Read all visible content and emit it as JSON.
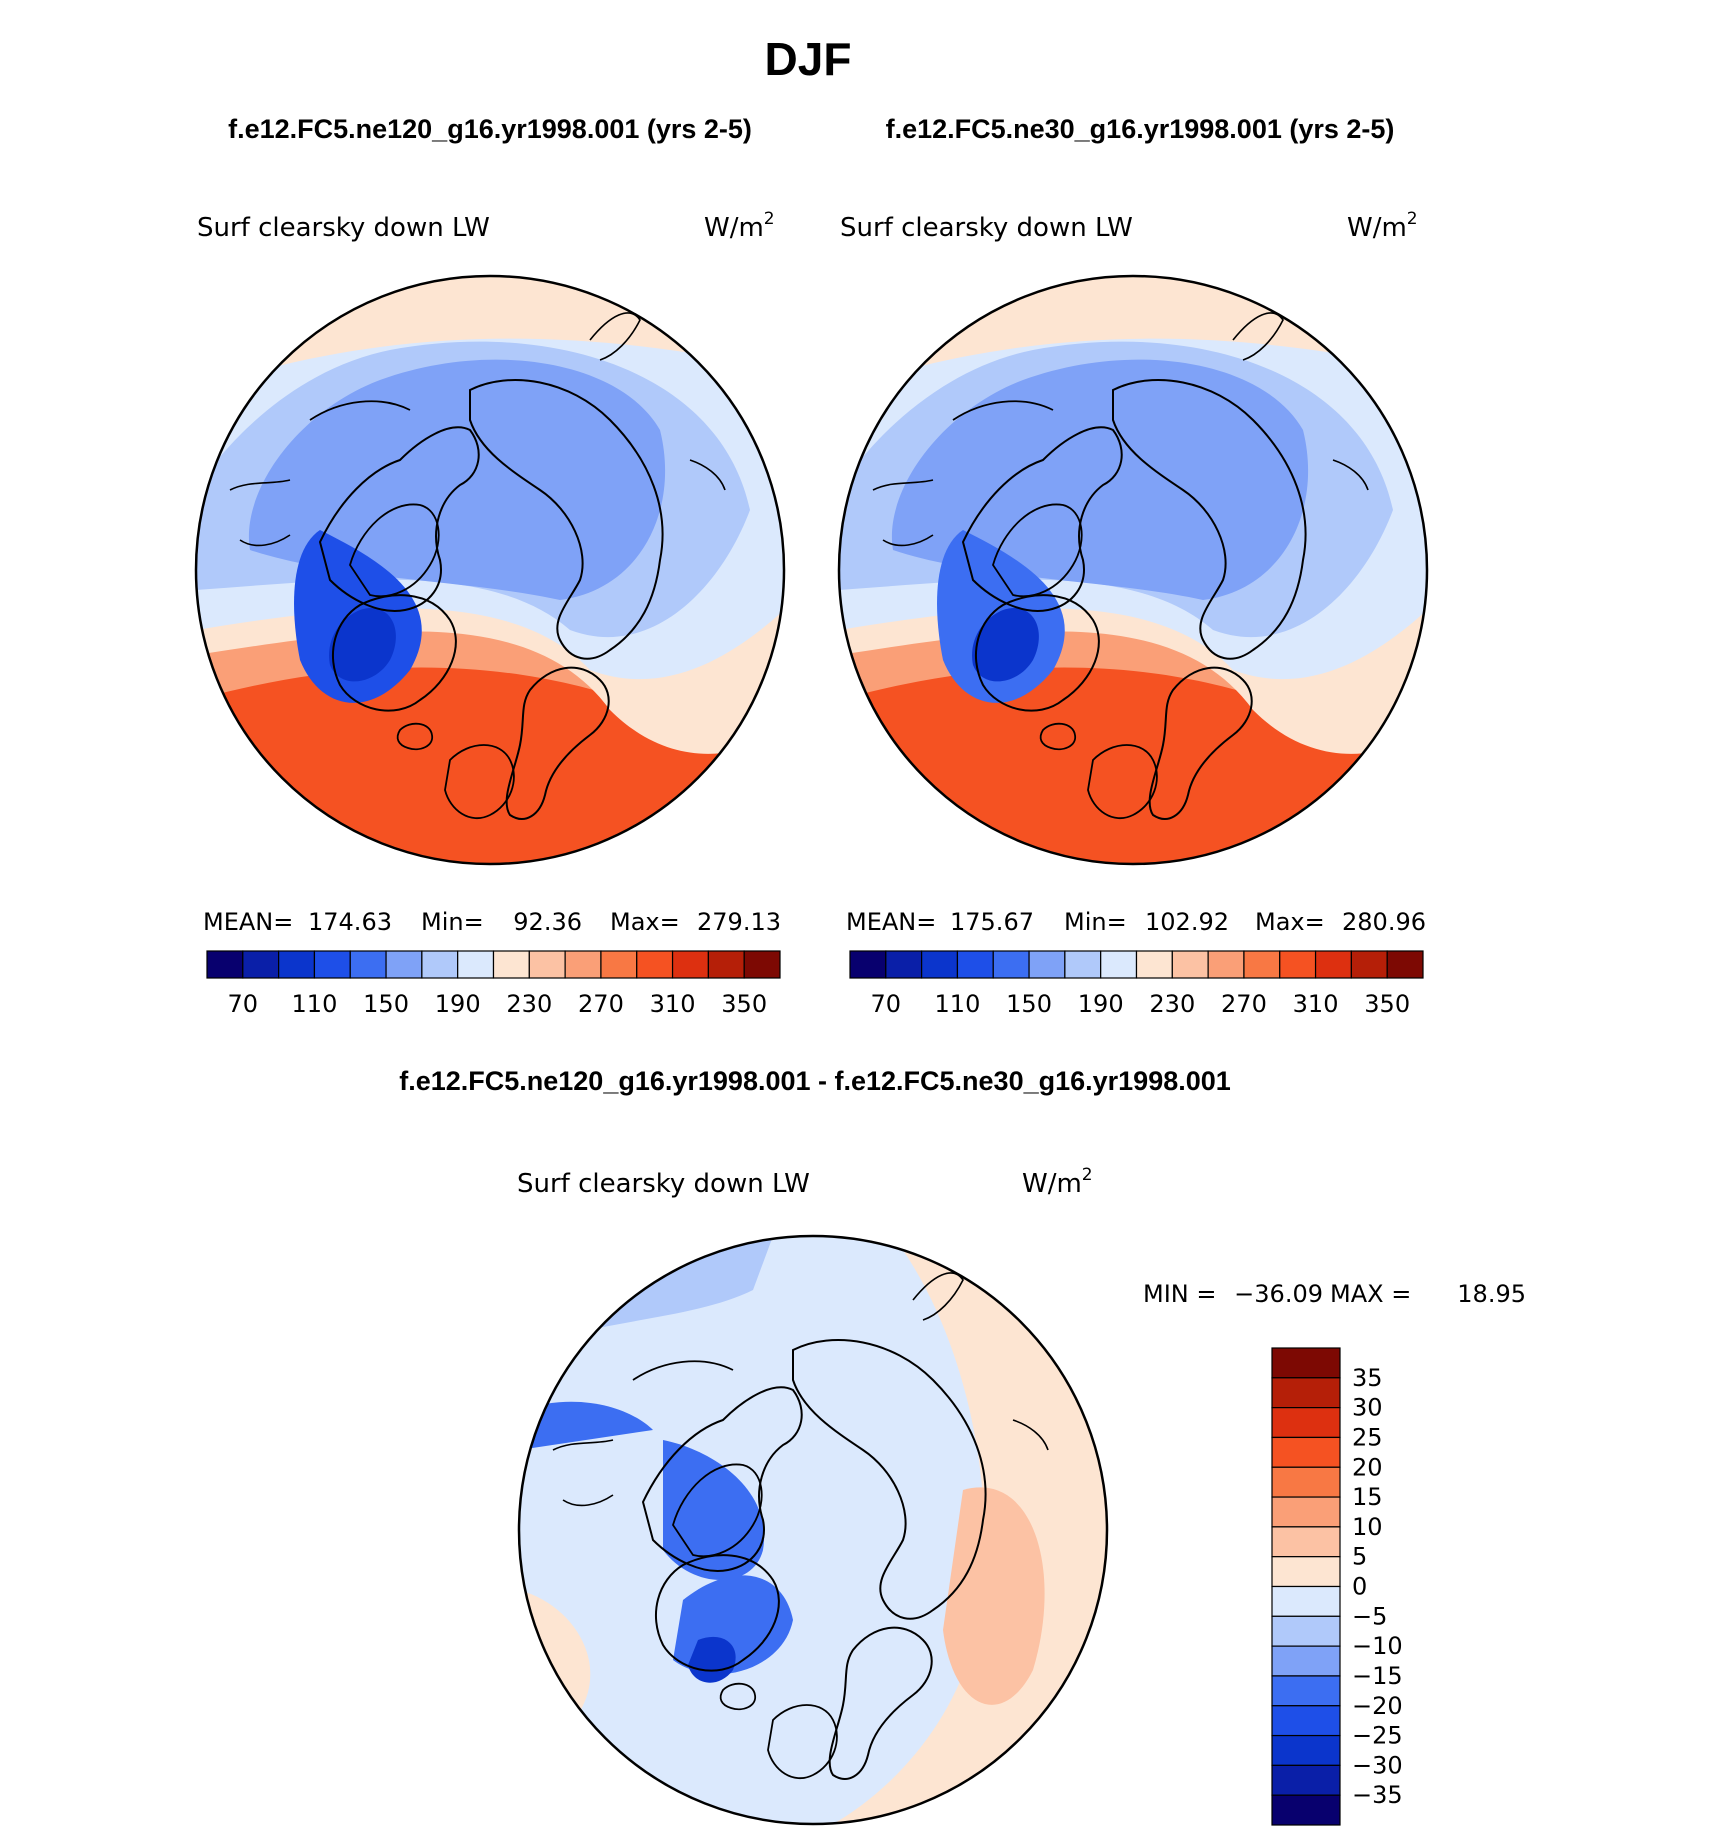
{
  "chart_data": {
    "type": "heatmap",
    "title": "DJF",
    "pair_header": {
      "left": "f.e12.FC5.ne120_g16.yr1998.001 (yrs 2-5)",
      "right": "f.e12.FC5.ne30_g16.yr1998.001 (yrs 2-5)"
    },
    "diff_header": "f.e12.FC5.ne120_g16.yr1998.001 - f.e12.FC5.ne30_g16.yr1998.001",
    "panels": [
      {
        "variable": "Surf clearsky down LW",
        "units": "W/m",
        "units_exp": "2",
        "projection": "north-polar-stereographic",
        "stats": {
          "mean_label": "MEAN=",
          "mean": "174.63",
          "min_label": "Min=",
          "min": "92.36",
          "max_label": "Max=",
          "max": "279.13"
        }
      },
      {
        "variable": "Surf clearsky down LW",
        "units": "W/m",
        "units_exp": "2",
        "projection": "north-polar-stereographic",
        "stats": {
          "mean_label": "MEAN=",
          "mean": "175.67",
          "min_label": "Min=",
          "min": "102.92",
          "max_label": "Max=",
          "max": "280.96"
        }
      },
      {
        "variable": "Surf clearsky down LW",
        "units": "W/m",
        "units_exp": "2",
        "projection": "north-polar-stereographic",
        "stats": {
          "min_label": "MIN =",
          "min": "−36.09",
          "max_label": "MAX =",
          "max": "18.95"
        }
      }
    ],
    "abs_colorbar": {
      "levels": [
        70,
        90,
        110,
        130,
        150,
        170,
        190,
        210,
        230,
        250,
        270,
        290,
        310,
        330,
        350
      ],
      "tick_labels": [
        "70",
        "110",
        "150",
        "190",
        "230",
        "270",
        "310",
        "350"
      ],
      "colors": [
        "#08006e",
        "#0a1fa8",
        "#0b35cc",
        "#1e4fe8",
        "#3c6ef2",
        "#7fa2f7",
        "#b0c9fa",
        "#dbe9fd",
        "#fde5d2",
        "#fcc2a4",
        "#fa9f77",
        "#f87844",
        "#f55222",
        "#dd3010",
        "#b51f08",
        "#7d0903"
      ]
    },
    "diff_colorbar": {
      "levels": [
        -35,
        -30,
        -25,
        -20,
        -15,
        -10,
        -5,
        0,
        5,
        10,
        15,
        20,
        25,
        30,
        35
      ],
      "tick_labels": [
        "−35",
        "−30",
        "−25",
        "−20",
        "−15",
        "−10",
        "−5",
        "0",
        "5",
        "10",
        "15",
        "20",
        "25",
        "30",
        "35"
      ],
      "colors": [
        "#08006e",
        "#0a1fa8",
        "#0b35cc",
        "#1e4fe8",
        "#3c6ef2",
        "#7fa2f7",
        "#b0c9fa",
        "#dbe9fd",
        "#fde5d2",
        "#fcc2a4",
        "#fa9f77",
        "#f87844",
        "#f55222",
        "#dd3010",
        "#b51f08",
        "#7d0903"
      ]
    },
    "fields": {
      "model_a": {
        "ocean_zone_values": [
          100,
          125,
          150,
          170,
          195,
          225,
          255,
          290
        ]
      },
      "model_b": {
        "ocean_zone_values": [
          105,
          130,
          155,
          175,
          200,
          228,
          258,
          292
        ]
      },
      "difference": {
        "ocean_zone_values": [
          -30,
          -18,
          -8,
          -3,
          2,
          6
        ]
      }
    }
  }
}
